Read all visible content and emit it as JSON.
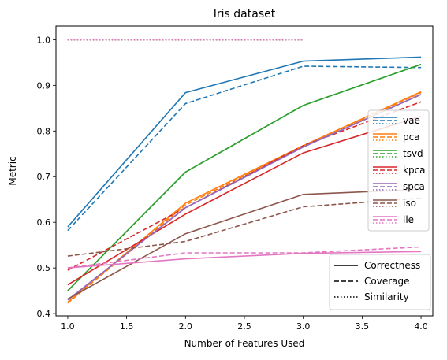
{
  "chart_data": {
    "type": "line",
    "title": "Iris dataset",
    "xlabel": "Number of Features Used",
    "ylabel": "Metric",
    "x": [
      1.0,
      2.0,
      3.0,
      4.0
    ],
    "xlim": [
      0.9,
      4.1
    ],
    "ylim": [
      0.395,
      1.03
    ],
    "xticks": [
      "1.0",
      "1.5",
      "2.0",
      "2.5",
      "3.0",
      "3.5",
      "4.0"
    ],
    "yticks": [
      "0.4",
      "0.5",
      "0.6",
      "0.7",
      "0.8",
      "0.9",
      "1.0"
    ],
    "grid": false,
    "methods": [
      {
        "name": "vae",
        "color": "#1f77b4",
        "correctness": [
          0.59,
          0.884,
          0.953,
          0.962
        ],
        "coverage": [
          0.582,
          0.86,
          0.942,
          0.939
        ],
        "similarity": [
          1.0,
          1.0,
          1.0
        ]
      },
      {
        "name": "pca",
        "color": "#ff7f0e",
        "correctness": [
          0.425,
          0.642,
          0.768,
          0.886
        ],
        "coverage": [
          0.423,
          0.638,
          0.766,
          0.884
        ],
        "similarity": [
          1.0,
          1.0,
          1.0
        ]
      },
      {
        "name": "tsvd",
        "color": "#2ca02c",
        "correctness": [
          0.45,
          0.71,
          0.856,
          0.946
        ],
        "coverage": [
          0.45,
          0.71,
          0.856,
          0.946
        ],
        "similarity": [
          1.0,
          1.0,
          1.0
        ]
      },
      {
        "name": "kpca",
        "color": "#d62728",
        "correctness": [
          0.463,
          0.618,
          0.752,
          0.832
        ],
        "coverage": [
          0.495,
          0.632,
          0.768,
          0.864
        ],
        "similarity": [
          1.0,
          1.0,
          1.0
        ]
      },
      {
        "name": "spca",
        "color": "#9467bd",
        "correctness": [
          0.43,
          0.632,
          0.765,
          0.88
        ],
        "coverage": [
          0.43,
          0.632,
          0.765,
          0.88
        ],
        "similarity": [
          1.0,
          1.0,
          1.0
        ]
      },
      {
        "name": "iso",
        "color": "#8c564b",
        "correctness": [
          0.432,
          0.575,
          0.661,
          0.672
        ],
        "coverage": [
          0.526,
          0.558,
          0.634,
          0.653
        ],
        "similarity": [
          1.0,
          1.0,
          1.0
        ]
      },
      {
        "name": "lle",
        "color": "#e377c2",
        "correctness": [
          0.5,
          0.52,
          0.532,
          0.536
        ],
        "coverage": [
          0.5,
          0.533,
          0.533,
          0.546
        ],
        "similarity": [
          1.0,
          1.0,
          1.0
        ]
      }
    ],
    "style_legend": [
      {
        "label": "Correctness",
        "dash": "solid"
      },
      {
        "label": "Coverage",
        "dash": "dashed"
      },
      {
        "label": "Similarity",
        "dash": "dotted"
      }
    ],
    "method_legend_position": "center-right",
    "style_legend_position": "lower-right"
  }
}
